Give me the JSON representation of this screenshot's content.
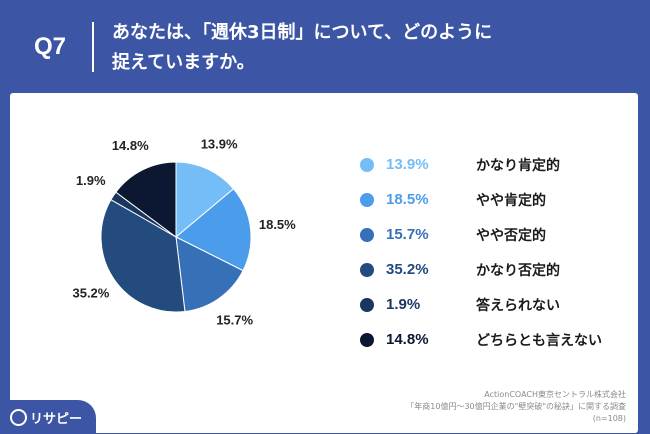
{
  "header": {
    "qnum": "Q7",
    "question_line1": "あなたは、「週休3日制」について、どのように",
    "question_line2": "捉えていますか。"
  },
  "chart_data": {
    "type": "pie",
    "title": "",
    "slices": [
      {
        "label": "かなり肯定的",
        "value": 13.9,
        "value_label": "13.9%",
        "color": "#75bdf7"
      },
      {
        "label": "やや肯定的",
        "value": 18.5,
        "value_label": "18.5%",
        "color": "#4b9ceb"
      },
      {
        "label": "やや否定的",
        "value": 15.7,
        "value_label": "15.7%",
        "color": "#3570b8"
      },
      {
        "label": "かなり否定的",
        "value": 35.2,
        "value_label": "35.2%",
        "color": "#234b7e"
      },
      {
        "label": "答えられない",
        "value": 1.9,
        "value_label": "1.9%",
        "color": "#1a355e"
      },
      {
        "label": "どちらとも言えない",
        "value": 14.8,
        "value_label": "14.8%",
        "color": "#0c1832"
      }
    ],
    "legend_position": "right"
  },
  "source": {
    "line1": "ActionCOACH東京セントラル株式会社",
    "line2": "「年商10億円～30億円企業の\"壁突破\"の秘訣」に関する調査",
    "line3": "(n=108)"
  },
  "logo": {
    "text": "リサピー",
    "icon": "risapy-logo-icon"
  }
}
